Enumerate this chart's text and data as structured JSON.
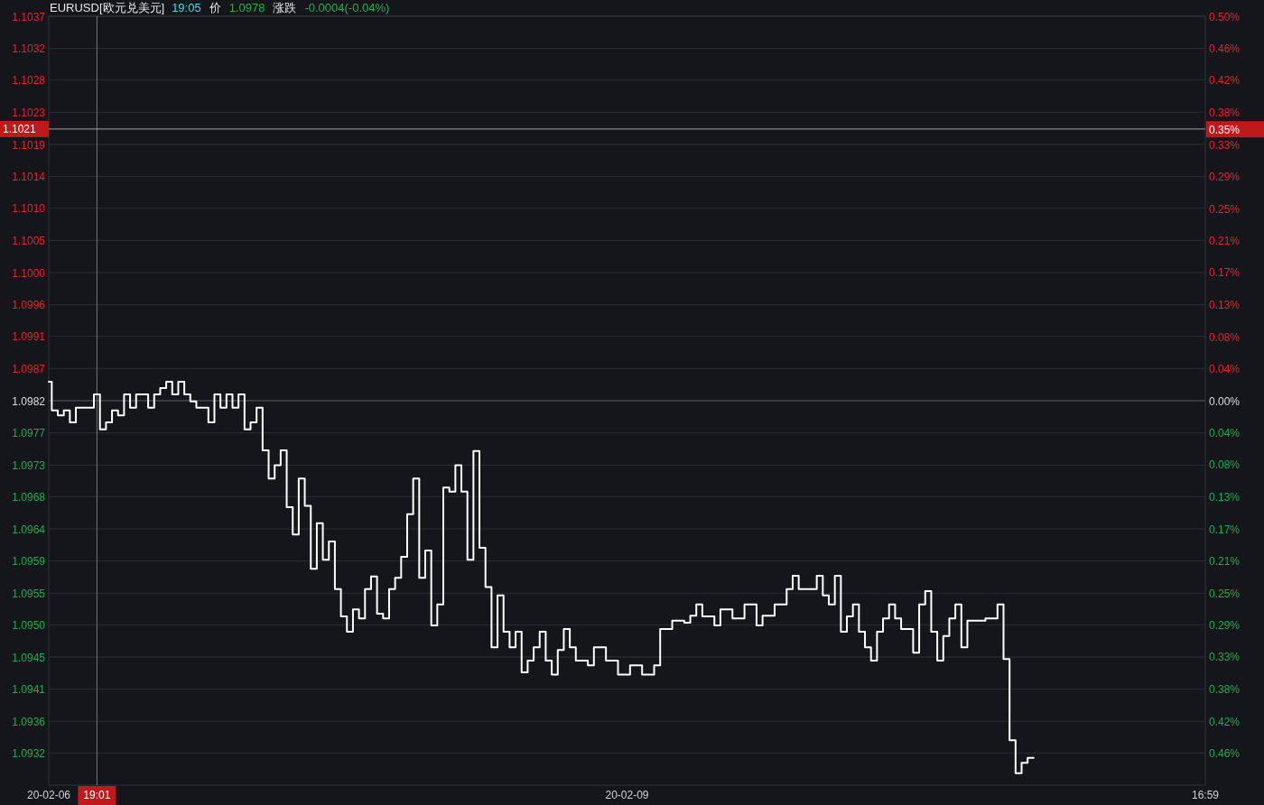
{
  "chart_data": {
    "type": "step",
    "title": "EURUSD[欧元兑美元]",
    "annotations": [
      "19:05",
      "价",
      "1.0978",
      "涨跌",
      "-0.0004(-0.04%)"
    ],
    "categories": [
      "20-02-06",
      null,
      null,
      null,
      null,
      null,
      null,
      null,
      "19:01",
      null,
      null,
      null,
      null,
      null,
      null,
      null,
      null,
      null,
      null,
      null,
      null,
      null,
      null,
      null,
      null,
      null,
      null,
      null,
      null,
      null,
      null,
      null,
      null,
      null,
      null,
      null,
      null,
      null,
      null,
      null,
      null,
      null,
      null,
      null,
      null,
      null,
      null,
      null,
      null,
      null,
      null,
      null,
      null,
      null,
      null,
      null,
      null,
      null,
      null,
      null,
      null,
      null,
      null,
      null,
      null,
      null,
      null,
      null,
      null,
      null,
      null,
      null,
      null,
      null,
      null,
      null,
      null,
      null,
      null,
      null,
      null,
      null,
      null,
      null,
      null,
      null,
      null,
      null,
      null,
      null,
      null,
      null,
      null,
      null,
      null,
      null,
      "20-02-09",
      null,
      null,
      null,
      null,
      null,
      null,
      null,
      null,
      null,
      null,
      null,
      null,
      null,
      null,
      null,
      null,
      null,
      null,
      null,
      null,
      null,
      null,
      null,
      null,
      null,
      null,
      null,
      null,
      null,
      null,
      null,
      null,
      null,
      null,
      null,
      null,
      null,
      null,
      null,
      null,
      null,
      null,
      null,
      null,
      null,
      null,
      null,
      null,
      null,
      null,
      null,
      null,
      null,
      null,
      null,
      null,
      null,
      null,
      null,
      null,
      null,
      null,
      null,
      null,
      null,
      null,
      null,
      null,
      null,
      null,
      null,
      null,
      null,
      null,
      null,
      null,
      null,
      null,
      null,
      null,
      null,
      null,
      null,
      null,
      null,
      null,
      null,
      null,
      null,
      null,
      null,
      null,
      null,
      null,
      null,
      "16:59"
    ],
    "series": [
      {
        "color": "#ffffff",
        "values": [
          1.09847,
          1.09806,
          1.09799,
          1.09806,
          1.09789,
          1.0981,
          1.0981,
          1.0981,
          1.09829,
          1.09779,
          1.09789,
          1.09806,
          1.09799,
          1.09829,
          1.0981,
          1.09829,
          1.09829,
          1.0981,
          1.09829,
          1.09838,
          1.09847,
          1.09829,
          1.09847,
          1.09829,
          1.09819,
          1.0981,
          1.0981,
          1.09789,
          1.09829,
          1.0981,
          1.09829,
          1.0981,
          1.09829,
          1.09779,
          1.09789,
          1.0981,
          1.09749,
          1.09709,
          1.09728,
          1.09749,
          1.09668,
          1.09629,
          1.09709,
          1.0967,
          1.0958,
          1.09645,
          1.09593,
          1.09619,
          1.09551,
          1.09512,
          1.0949,
          1.09522,
          1.09509,
          1.09551,
          1.09569,
          1.09516,
          1.09509,
          1.09551,
          1.09567,
          1.09597,
          1.09658,
          1.09709,
          1.09567,
          1.09606,
          1.09499,
          1.09529,
          1.09696,
          1.0969,
          1.09728,
          1.0969,
          1.09593,
          1.09748,
          1.0961,
          1.09554,
          1.09468,
          1.09542,
          1.0949,
          1.09468,
          1.0949,
          1.09432,
          1.09449,
          1.09468,
          1.0949,
          1.09449,
          1.09429,
          1.09464,
          1.09494,
          1.09468,
          1.09449,
          1.09449,
          1.09442,
          1.09468,
          1.09468,
          1.09449,
          1.09449,
          1.09429,
          1.09429,
          1.09442,
          1.09442,
          1.09429,
          1.09429,
          1.09442,
          1.09494,
          1.09494,
          1.09506,
          1.09506,
          1.09503,
          1.09513,
          1.09529,
          1.09512,
          1.09512,
          1.09499,
          1.09522,
          1.09522,
          1.09509,
          1.09509,
          1.09529,
          1.09529,
          1.09499,
          1.09513,
          1.09513,
          1.09529,
          1.09529,
          1.09551,
          1.0957,
          1.09551,
          1.09551,
          1.09551,
          1.0957,
          1.09542,
          1.09529,
          1.0957,
          1.0949,
          1.09512,
          1.09529,
          1.0949,
          1.09468,
          1.09449,
          1.0949,
          1.09509,
          1.09529,
          1.09509,
          1.09494,
          1.09494,
          1.0946,
          1.09529,
          1.09548,
          1.0949,
          1.09449,
          1.09484,
          1.09509,
          1.09529,
          1.09468,
          1.09506,
          1.09506,
          1.09506,
          1.09509,
          1.09509,
          1.09529,
          1.09451,
          1.09335,
          1.09288,
          1.09303,
          1.0931,
          null,
          null,
          null,
          null,
          null,
          null,
          null,
          null,
          null,
          null,
          null,
          null,
          null,
          null,
          null,
          null,
          null,
          null,
          null,
          null,
          null,
          null,
          null,
          null,
          null,
          null,
          null,
          null,
          null
        ]
      }
    ],
    "ylim": [
      1.09271,
      1.10369
    ],
    "yticks": [
      {
        "value": 1.10369,
        "label": "1.1037"
      },
      {
        "value": 1.10323,
        "label": "1.1032"
      },
      {
        "value": 1.10278,
        "label": "1.1028"
      },
      {
        "value": 1.10232,
        "label": "1.1023"
      },
      {
        "value": 1.10186,
        "label": "1.1019"
      },
      {
        "value": 1.1014,
        "label": "1.1014"
      },
      {
        "value": 1.10095,
        "label": "1.1010"
      },
      {
        "value": 1.10049,
        "label": "1.1005"
      },
      {
        "value": 1.10003,
        "label": "1.1000"
      },
      {
        "value": 1.09957,
        "label": "1.0996"
      },
      {
        "value": 1.09912,
        "label": "1.0991"
      },
      {
        "value": 1.09866,
        "label": "1.0987"
      },
      {
        "value": 1.0982,
        "label": "1.0982"
      },
      {
        "value": 1.09774,
        "label": "1.0977"
      },
      {
        "value": 1.09728,
        "label": "1.0973"
      },
      {
        "value": 1.09683,
        "label": "1.0968"
      },
      {
        "value": 1.09637,
        "label": "1.0964"
      },
      {
        "value": 1.09591,
        "label": "1.0959"
      },
      {
        "value": 1.09545,
        "label": "1.0955"
      },
      {
        "value": 1.095,
        "label": "1.0950"
      },
      {
        "value": 1.09454,
        "label": "1.0945"
      },
      {
        "value": 1.09408,
        "label": "1.0941"
      },
      {
        "value": 1.09362,
        "label": "1.0936"
      },
      {
        "value": 1.09317,
        "label": "1.0932"
      }
    ],
    "y2lim": [
      -0.5,
      0.5
    ],
    "y2ticks": [
      {
        "value": 0.5,
        "label": "0.50%"
      },
      {
        "value": 0.4583,
        "label": "0.46%"
      },
      {
        "value": 0.4167,
        "label": "0.42%"
      },
      {
        "value": 0.375,
        "label": "0.38%"
      },
      {
        "value": 0.353,
        "label": "0.35%"
      },
      {
        "value": 0.3333,
        "label": "0.33%"
      },
      {
        "value": 0.2917,
        "label": "0.29%"
      },
      {
        "value": 0.25,
        "label": "0.25%"
      },
      {
        "value": 0.2083,
        "label": "0.21%"
      },
      {
        "value": 0.1667,
        "label": "0.17%"
      },
      {
        "value": 0.125,
        "label": "0.13%"
      },
      {
        "value": 0.0833,
        "label": "0.08%"
      },
      {
        "value": 0.0417,
        "label": "0.04%"
      },
      {
        "value": 0,
        "label": "0.00%"
      },
      {
        "value": -0.0417,
        "label": "0.04%"
      },
      {
        "value": -0.0833,
        "label": "0.08%"
      },
      {
        "value": -0.125,
        "label": "0.13%"
      },
      {
        "value": -0.1667,
        "label": "0.17%"
      },
      {
        "value": -0.2083,
        "label": "0.21%"
      },
      {
        "value": -0.25,
        "label": "0.25%"
      },
      {
        "value": -0.2917,
        "label": "0.29%"
      },
      {
        "value": -0.3333,
        "label": "0.33%"
      },
      {
        "value": -0.375,
        "label": "0.38%"
      },
      {
        "value": -0.4167,
        "label": "0.42%"
      },
      {
        "value": -0.4583,
        "label": "0.46%"
      }
    ],
    "ref_lines": [
      {
        "axis": "y",
        "value": 1.0982,
        "color": "#4f525a"
      },
      {
        "axis": "x",
        "value": "19:01",
        "color": "#767676"
      },
      {
        "axis": "y",
        "value": 1.10208,
        "label": "1.1021",
        "color": "#a6a6a6"
      }
    ],
    "grid": "y"
  }
}
